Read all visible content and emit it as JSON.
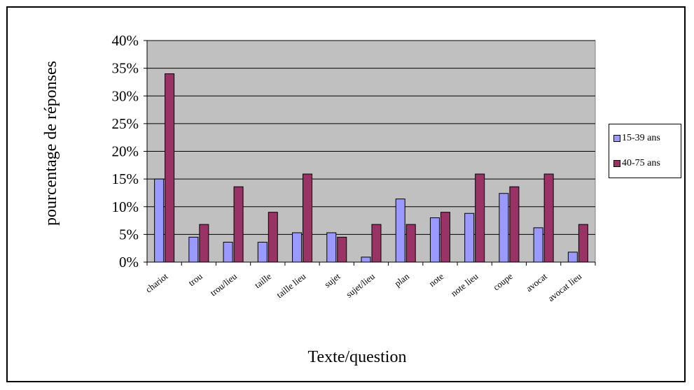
{
  "chart_data": {
    "type": "bar",
    "xlabel": "Texte/question",
    "ylabel": "pourcentage de réponses",
    "ylim": [
      0,
      40
    ],
    "yticks": [
      "0%",
      "5%",
      "10%",
      "15%",
      "20%",
      "25%",
      "30%",
      "35%",
      "40%"
    ],
    "categories": [
      "chariot",
      "trou",
      "trou/lieu",
      "taille",
      "taille lieu",
      "sujet",
      "sujet/lieu",
      "plan",
      "note",
      "note lieu",
      "coupe",
      "avocat",
      "avocat lieu"
    ],
    "series": [
      {
        "name": "15-39 ans",
        "color": "#9999ff",
        "values": [
          15,
          4.5,
          3.6,
          3.6,
          5.3,
          5.3,
          0.9,
          11.4,
          8,
          8.8,
          12.4,
          6.2,
          1.8
        ]
      },
      {
        "name": "40-75 ans",
        "color": "#993366",
        "values": [
          34,
          6.8,
          13.6,
          9,
          15.9,
          4.5,
          6.8,
          6.8,
          9,
          15.9,
          13.6,
          15.9,
          6.8
        ]
      }
    ],
    "grid": true,
    "plot_background": "#c0c0c0",
    "legend_position": "right"
  }
}
